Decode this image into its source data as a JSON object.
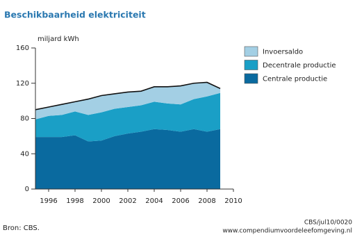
{
  "chart_data": {
    "type": "stacked-area",
    "title": "Beschikbaarheid elektriciteit",
    "y_label": "miljard kWh",
    "x": [
      1995,
      1996,
      1997,
      1998,
      1999,
      2000,
      2001,
      2002,
      2003,
      2004,
      2005,
      2006,
      2007,
      2008,
      2009
    ],
    "series": [
      {
        "name": "Centrale productie",
        "color": "#0a6a9f",
        "values": [
          59,
          59,
          59,
          61,
          54,
          55,
          60,
          63,
          65,
          68,
          67,
          65,
          68,
          65,
          68
        ]
      },
      {
        "name": "Decentrale productie",
        "color": "#1a9fc6",
        "values": [
          20,
          24,
          25,
          27,
          30,
          32,
          31,
          30,
          30,
          31,
          30,
          31,
          34,
          40,
          41
        ]
      },
      {
        "name": "Invoersaldo",
        "color": "#a3cfe4",
        "values": [
          11,
          10,
          12,
          11,
          18,
          19,
          17,
          17,
          16,
          17,
          19,
          21,
          18,
          16,
          5
        ]
      }
    ],
    "xlim": [
      1995,
      2010
    ],
    "xticks": [
      1996,
      1998,
      2000,
      2002,
      2004,
      2006,
      2008,
      2010
    ],
    "ylim": [
      0,
      160
    ],
    "yticks": [
      0,
      40,
      80,
      120,
      160
    ],
    "source": "Bron: CBS.",
    "code": "CBS/jul10/0020",
    "website": "www.compendiumvoordeleefomgeving.nl"
  }
}
